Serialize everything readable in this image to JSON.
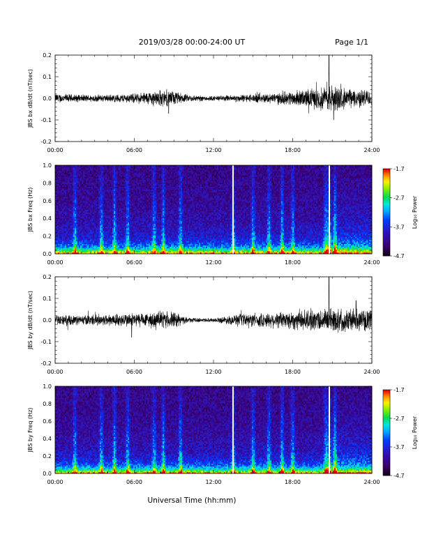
{
  "header": {
    "title": "2019/03/28   00:00-24:00 UT",
    "page": "Page 1/1"
  },
  "chart_data": [
    {
      "type": "line",
      "ylabel": "JBS bx dB/dt (nT/sec)",
      "xlabel": "",
      "x_ticks": [
        "00:00",
        "06:00",
        "12:00",
        "18:00",
        "24:00"
      ],
      "y_ticks": [
        "0.2",
        "0.1",
        "0.0",
        "-0.1",
        "-0.2"
      ],
      "xlim": [
        0,
        24
      ],
      "ylim": [
        -0.2,
        0.2
      ],
      "series": [
        {
          "x": [
            0,
            2,
            4,
            6,
            8,
            9,
            10,
            12,
            14,
            16,
            18,
            20,
            20.75,
            21.5,
            22,
            24
          ],
          "amplitude": [
            0.02,
            0.015,
            0.015,
            0.02,
            0.035,
            0.03,
            0.015,
            0.01,
            0.015,
            0.02,
            0.03,
            0.045,
            0.06,
            0.05,
            0.04,
            0.035
          ],
          "spikes": [
            {
              "x": 20.75,
              "y": 0.2
            },
            {
              "x": 21.1,
              "y": -0.1
            },
            {
              "x": 8.6,
              "y": -0.07
            }
          ]
        }
      ]
    },
    {
      "type": "heatmap",
      "ylabel": "JBS bx Freq (Hz)",
      "xlabel": "",
      "x_ticks": [
        "00:00",
        "06:00",
        "12:00",
        "18:00",
        "24:00"
      ],
      "y_ticks": [
        "1.0",
        "0.8",
        "0.6",
        "0.4",
        "0.2",
        "0.0"
      ],
      "xlim": [
        0,
        24
      ],
      "ylim": [
        0,
        1
      ],
      "colorbar": {
        "label": "Log₁₀ Power",
        "ticks": [
          "-1.7",
          "-2.7",
          "-3.7",
          "-4.7"
        ],
        "range": [
          -4.7,
          -1.7
        ]
      },
      "bright_bands": [
        1.5,
        3.5,
        4.5,
        5.5,
        7.5,
        8.2,
        9.5,
        13.5,
        15,
        16.2,
        17.2,
        18,
        20.5,
        20.75,
        21.2
      ],
      "gap_times": [
        13.5,
        20.75
      ]
    },
    {
      "type": "line",
      "ylabel": "JBS by dB/dt (nT/sec)",
      "xlabel": "",
      "x_ticks": [
        "00:00",
        "06:00",
        "12:00",
        "18:00",
        "24:00"
      ],
      "y_ticks": [
        "0.2",
        "0.1",
        "0.0",
        "-0.1",
        "-0.2"
      ],
      "xlim": [
        0,
        24
      ],
      "ylim": [
        -0.2,
        0.2
      ],
      "series": [
        {
          "x": [
            0,
            2,
            4,
            6,
            7,
            8,
            9,
            10,
            12,
            14,
            16,
            18,
            20,
            21,
            22,
            24
          ],
          "amplitude": [
            0.02,
            0.02,
            0.025,
            0.03,
            0.03,
            0.035,
            0.035,
            0.01,
            0.008,
            0.025,
            0.03,
            0.04,
            0.045,
            0.05,
            0.05,
            0.04
          ],
          "spikes": [
            {
              "x": 20.75,
              "y": 0.2
            },
            {
              "x": 22.8,
              "y": 0.09
            },
            {
              "x": 5.8,
              "y": -0.08
            }
          ]
        }
      ]
    },
    {
      "type": "heatmap",
      "ylabel": "JBS by Freq (Hz)",
      "xlabel": "Universal Time (hh:mm)",
      "x_ticks": [
        "00:00",
        "06:00",
        "12:00",
        "18:00",
        "24:00"
      ],
      "y_ticks": [
        "1.0",
        "0.8",
        "0.6",
        "0.4",
        "0.2",
        "0.0"
      ],
      "xlim": [
        0,
        24
      ],
      "ylim": [
        0,
        1
      ],
      "colorbar": {
        "label": "Log₁₀ Power",
        "ticks": [
          "-1.7",
          "-2.7",
          "-3.7",
          "-4.7"
        ],
        "range": [
          -4.7,
          -1.7
        ]
      },
      "bright_bands": [
        1.5,
        3.5,
        4.5,
        5.5,
        7.5,
        8.2,
        9.5,
        13.5,
        15,
        16.2,
        17.2,
        18,
        20.5,
        20.75,
        21.2
      ],
      "gap_times": [
        13.5,
        20.75
      ]
    }
  ]
}
